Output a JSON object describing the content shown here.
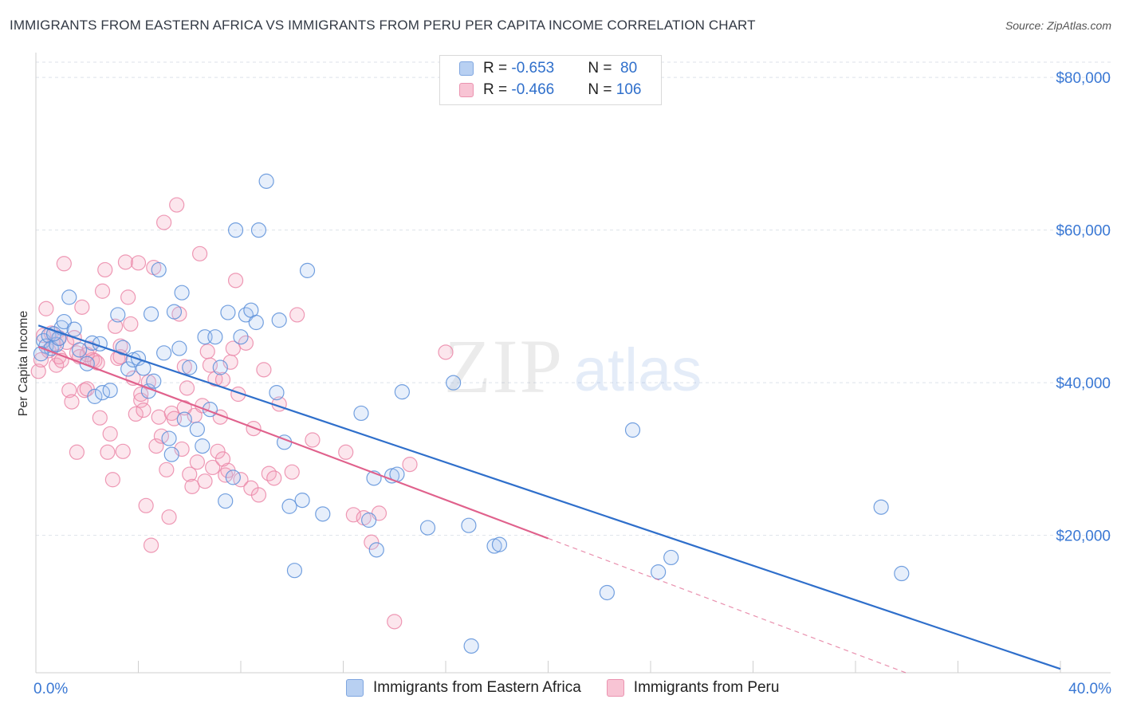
{
  "header": {
    "title": "IMMIGRANTS FROM EASTERN AFRICA VS IMMIGRANTS FROM PERU PER CAPITA INCOME CORRELATION CHART",
    "source": "Source: ZipAtlas.com"
  },
  "watermark": {
    "zip": "ZIP",
    "atlas": "atlas"
  },
  "legend": {
    "rows": [
      {
        "r_label": "R = ",
        "r_value": "-0.653",
        "n_label": "N = ",
        "n_value": " 80"
      },
      {
        "r_label": "R = ",
        "r_value": "-0.466",
        "n_label": "N = ",
        "n_value": "106"
      }
    ]
  },
  "colors": {
    "blue": "#5b8fd9",
    "blue_line": "#2f6fcb",
    "pink": "#eb87a8",
    "pink_line": "#e0618c",
    "axis_text": "#3a78d4"
  },
  "chart_data": {
    "type": "scatter",
    "title": "IMMIGRANTS FROM EASTERN AFRICA VS IMMIGRANTS FROM PERU PER CAPITA INCOME CORRELATION CHART",
    "xlabel": "",
    "ylabel": "Per Capita Income",
    "xlim": [
      0,
      40
    ],
    "ylim": [
      2000,
      82000
    ],
    "x_tick_labels": [
      "0.0%",
      "40.0%"
    ],
    "y_ticks": [
      20000,
      40000,
      60000,
      80000
    ],
    "y_tick_labels": [
      "$20,000",
      "$40,000",
      "$60,000",
      "$80,000"
    ],
    "grid": true,
    "legend_position": "top-center",
    "series": [
      {
        "name": "Immigrants from Eastern Africa",
        "color": "#5b8fd9",
        "trend": {
          "x": [
            0.1,
            40
          ],
          "y": [
            47500,
            2500
          ]
        },
        "points": [
          [
            0.3,
            45500
          ],
          [
            0.4,
            44800
          ],
          [
            0.5,
            46200
          ],
          [
            0.6,
            44500
          ],
          [
            0.8,
            45000
          ],
          [
            0.9,
            45800
          ],
          [
            1.0,
            47200
          ],
          [
            1.1,
            48000
          ],
          [
            1.3,
            51200
          ],
          [
            1.5,
            47000
          ],
          [
            1.7,
            44300
          ],
          [
            2.0,
            42500
          ],
          [
            2.2,
            45200
          ],
          [
            2.3,
            38200
          ],
          [
            2.6,
            38700
          ],
          [
            2.9,
            39000
          ],
          [
            3.2,
            48900
          ],
          [
            3.4,
            44600
          ],
          [
            3.6,
            41800
          ],
          [
            3.8,
            43000
          ],
          [
            4.0,
            43200
          ],
          [
            4.2,
            41900
          ],
          [
            4.4,
            38900
          ],
          [
            4.5,
            49000
          ],
          [
            4.6,
            40200
          ],
          [
            4.8,
            54800
          ],
          [
            5.0,
            43900
          ],
          [
            5.2,
            32700
          ],
          [
            5.3,
            30600
          ],
          [
            5.4,
            49300
          ],
          [
            5.6,
            44500
          ],
          [
            5.7,
            51800
          ],
          [
            5.8,
            35200
          ],
          [
            6.0,
            42000
          ],
          [
            6.3,
            33900
          ],
          [
            6.5,
            31700
          ],
          [
            6.6,
            46000
          ],
          [
            6.8,
            36500
          ],
          [
            7.0,
            46000
          ],
          [
            7.2,
            42000
          ],
          [
            7.4,
            24500
          ],
          [
            7.5,
            49200
          ],
          [
            7.7,
            27600
          ],
          [
            7.8,
            60000
          ],
          [
            8.0,
            46000
          ],
          [
            8.2,
            48900
          ],
          [
            8.4,
            49500
          ],
          [
            8.6,
            47900
          ],
          [
            8.7,
            60000
          ],
          [
            9.0,
            66400
          ],
          [
            9.4,
            38700
          ],
          [
            9.5,
            48200
          ],
          [
            9.7,
            32200
          ],
          [
            9.9,
            23800
          ],
          [
            10.1,
            15400
          ],
          [
            10.4,
            24600
          ],
          [
            10.6,
            54700
          ],
          [
            11.2,
            22800
          ],
          [
            12.7,
            36000
          ],
          [
            13.0,
            22000
          ],
          [
            13.2,
            27500
          ],
          [
            13.3,
            18100
          ],
          [
            13.9,
            27800
          ],
          [
            14.1,
            28000
          ],
          [
            14.3,
            38800
          ],
          [
            15.3,
            21000
          ],
          [
            16.3,
            40000
          ],
          [
            16.9,
            21300
          ],
          [
            17.0,
            5500
          ],
          [
            17.9,
            18600
          ],
          [
            18.1,
            18800
          ],
          [
            22.3,
            12500
          ],
          [
            23.3,
            33800
          ],
          [
            24.3,
            15200
          ],
          [
            24.8,
            17100
          ],
          [
            33.0,
            23700
          ],
          [
            33.8,
            15000
          ],
          [
            0.2,
            43800
          ],
          [
            0.7,
            46400
          ],
          [
            2.5,
            45100
          ]
        ]
      },
      {
        "name": "Immigrants from Peru",
        "color": "#eb87a8",
        "trend": {
          "x": [
            0.1,
            20
          ],
          "y": [
            44700,
            19600
          ]
        },
        "trend_dashed": {
          "x": [
            20,
            40
          ],
          "y": [
            19600,
            -5600
          ]
        },
        "points": [
          [
            0.1,
            41500
          ],
          [
            0.2,
            43000
          ],
          [
            0.3,
            46200
          ],
          [
            0.4,
            49700
          ],
          [
            0.5,
            44200
          ],
          [
            0.6,
            46500
          ],
          [
            0.7,
            45000
          ],
          [
            0.8,
            42300
          ],
          [
            0.9,
            43400
          ],
          [
            1.0,
            42900
          ],
          [
            1.1,
            55600
          ],
          [
            1.2,
            45300
          ],
          [
            1.3,
            39000
          ],
          [
            1.4,
            37500
          ],
          [
            1.5,
            45900
          ],
          [
            1.6,
            43900
          ],
          [
            1.7,
            43400
          ],
          [
            1.8,
            49900
          ],
          [
            1.9,
            39000
          ],
          [
            2.0,
            39200
          ],
          [
            2.1,
            44500
          ],
          [
            2.2,
            43000
          ],
          [
            2.3,
            42900
          ],
          [
            2.4,
            42600
          ],
          [
            2.5,
            35400
          ],
          [
            2.6,
            52000
          ],
          [
            2.7,
            54800
          ],
          [
            2.8,
            30900
          ],
          [
            2.9,
            33300
          ],
          [
            3.0,
            27300
          ],
          [
            3.1,
            47400
          ],
          [
            3.2,
            43200
          ],
          [
            3.3,
            43400
          ],
          [
            3.4,
            31000
          ],
          [
            3.5,
            55800
          ],
          [
            3.6,
            51200
          ],
          [
            3.7,
            47700
          ],
          [
            3.8,
            40600
          ],
          [
            3.9,
            35900
          ],
          [
            4.0,
            55700
          ],
          [
            4.1,
            37700
          ],
          [
            4.2,
            36400
          ],
          [
            4.3,
            23900
          ],
          [
            4.4,
            40100
          ],
          [
            4.5,
            18700
          ],
          [
            4.6,
            55100
          ],
          [
            4.7,
            31700
          ],
          [
            4.8,
            35500
          ],
          [
            4.9,
            33000
          ],
          [
            5.0,
            61000
          ],
          [
            5.1,
            28600
          ],
          [
            5.2,
            22400
          ],
          [
            5.3,
            36000
          ],
          [
            5.4,
            35300
          ],
          [
            5.5,
            63300
          ],
          [
            5.6,
            49000
          ],
          [
            5.7,
            31300
          ],
          [
            5.8,
            42100
          ],
          [
            5.9,
            39300
          ],
          [
            6.0,
            28000
          ],
          [
            6.1,
            26400
          ],
          [
            6.2,
            35700
          ],
          [
            6.3,
            29600
          ],
          [
            6.4,
            56900
          ],
          [
            6.5,
            37000
          ],
          [
            6.6,
            27100
          ],
          [
            6.7,
            44100
          ],
          [
            6.8,
            42300
          ],
          [
            6.9,
            28900
          ],
          [
            7.0,
            40500
          ],
          [
            7.1,
            31000
          ],
          [
            7.2,
            35500
          ],
          [
            7.3,
            40400
          ],
          [
            7.4,
            27900
          ],
          [
            7.5,
            28500
          ],
          [
            7.6,
            42700
          ],
          [
            7.7,
            44500
          ],
          [
            7.8,
            53400
          ],
          [
            7.9,
            38500
          ],
          [
            8.0,
            27300
          ],
          [
            8.2,
            45200
          ],
          [
            8.4,
            26200
          ],
          [
            8.5,
            34000
          ],
          [
            8.7,
            25300
          ],
          [
            8.9,
            41700
          ],
          [
            9.1,
            28100
          ],
          [
            9.3,
            27500
          ],
          [
            9.5,
            37200
          ],
          [
            10.0,
            28300
          ],
          [
            10.2,
            48900
          ],
          [
            10.8,
            32500
          ],
          [
            12.1,
            30900
          ],
          [
            12.4,
            22700
          ],
          [
            12.8,
            22300
          ],
          [
            13.1,
            19100
          ],
          [
            13.4,
            22900
          ],
          [
            14.0,
            8700
          ],
          [
            14.6,
            29300
          ],
          [
            16.0,
            44000
          ],
          [
            1.6,
            30900
          ],
          [
            3.3,
            44800
          ],
          [
            5.8,
            36700
          ],
          [
            0.9,
            45900
          ],
          [
            2.0,
            43700
          ],
          [
            4.1,
            38500
          ],
          [
            7.3,
            30000
          ]
        ]
      }
    ]
  }
}
